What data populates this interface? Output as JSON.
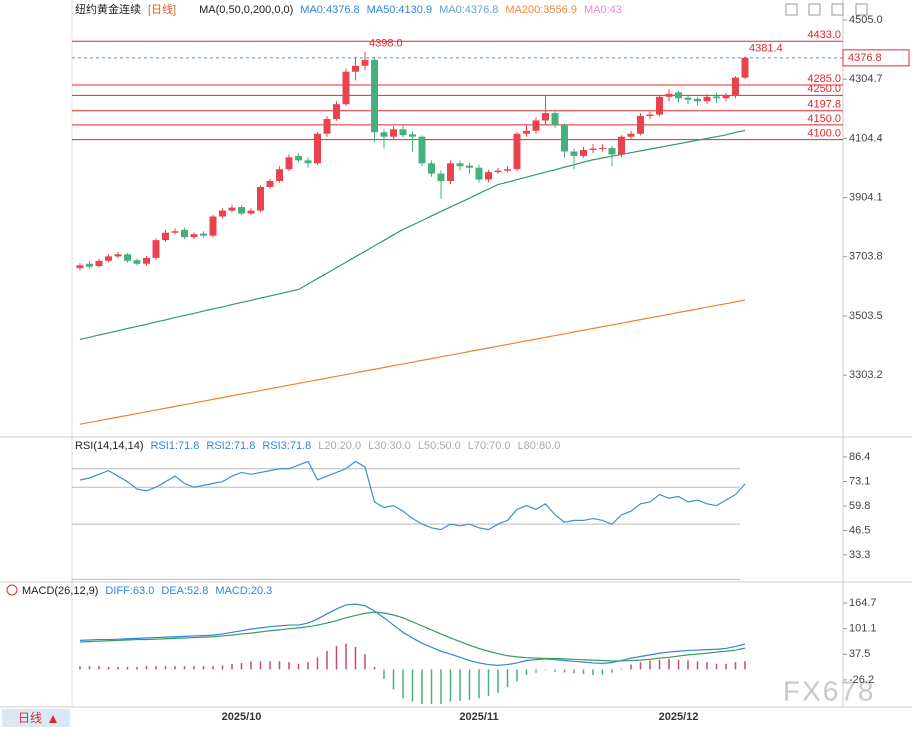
{
  "chart_data": [
    {
      "type": "candlestick",
      "title": "纽约黄金连续",
      "period": "[日线]",
      "indicator": "MA(0,50,0,200,0,0)",
      "legend": [
        {
          "label": "MA0:4376.8",
          "color": "#2f86d8"
        },
        {
          "label": "MA50:4130.9",
          "color": "#2f86d8"
        },
        {
          "label": "MA0:4376.8",
          "color": "#6a9fd0"
        },
        {
          "label": "MA200:3556.9",
          "color": "#f08a3c"
        },
        {
          "label": "MA0:43",
          "color": "#e58bd0"
        }
      ],
      "open": [
        3665,
        3680,
        3672,
        3690,
        3705,
        3712,
        3692,
        3680,
        3700,
        3760,
        3785,
        3795,
        3770,
        3782,
        3775,
        3840,
        3860,
        3872,
        3850,
        3860,
        3940,
        3960,
        4000,
        4045,
        4030,
        4020,
        4120,
        4170,
        4220,
        4330,
        4350,
        4370,
        4125,
        4110,
        4135,
        4118,
        4110,
        4020,
        3985,
        3960,
        4020,
        4012,
        4005,
        3965,
        3990,
        3995,
        4000,
        4120,
        4130,
        4165,
        4190,
        4150,
        4060,
        4045,
        4065,
        4070,
        4072,
        4050,
        4110,
        4120,
        4180,
        4185,
        4245,
        4260,
        4242,
        4238,
        4230,
        4246,
        4240,
        4250,
        4310
      ],
      "high": [
        3682,
        3688,
        3696,
        3712,
        3720,
        3716,
        3698,
        3706,
        3766,
        3795,
        3800,
        3802,
        3786,
        3790,
        3846,
        3868,
        3880,
        3878,
        3868,
        3946,
        3968,
        4010,
        4050,
        4055,
        4040,
        4126,
        4180,
        4230,
        4340,
        4380,
        4398,
        4380,
        4135,
        4145,
        4150,
        4128,
        4115,
        4030,
        3995,
        4030,
        4030,
        4020,
        4015,
        3998,
        4005,
        4010,
        4125,
        4150,
        4175,
        4250,
        4200,
        4155,
        4070,
        4075,
        4085,
        4085,
        4080,
        4115,
        4130,
        4190,
        4195,
        4250,
        4270,
        4265,
        4250,
        4245,
        4255,
        4260,
        4258,
        4315,
        4381.4
      ],
      "low": [
        3658,
        3664,
        3667,
        3685,
        3699,
        3684,
        3674,
        3674,
        3694,
        3754,
        3779,
        3764,
        3764,
        3769,
        3769,
        3834,
        3854,
        3844,
        3844,
        3854,
        3934,
        3954,
        3994,
        4024,
        4005,
        4014,
        4110,
        4164,
        4214,
        4300,
        4335,
        4090,
        4070,
        4100,
        4108,
        4060,
        4010,
        3975,
        3900,
        3950,
        3995,
        3985,
        3955,
        3955,
        3984,
        3989,
        3994,
        4110,
        4120,
        4150,
        4140,
        4040,
        4000,
        4039,
        4055,
        4060,
        4010,
        4040,
        4100,
        4114,
        4170,
        4179,
        4230,
        4225,
        4220,
        4215,
        4220,
        4225,
        4230,
        4240,
        4305
      ],
      "close": [
        3675,
        3670,
        3690,
        3705,
        3712,
        3690,
        3680,
        3700,
        3760,
        3785,
        3790,
        3770,
        3780,
        3775,
        3840,
        3860,
        3870,
        3850,
        3860,
        3940,
        3960,
        4000,
        4040,
        4030,
        4020,
        4120,
        4170,
        4220,
        4330,
        4350,
        4370,
        4125,
        4110,
        4135,
        4115,
        4110,
        4020,
        3985,
        3960,
        4020,
        4010,
        4005,
        3965,
        3990,
        3995,
        4000,
        4120,
        4130,
        4165,
        4190,
        4150,
        4060,
        4045,
        4065,
        4070,
        4072,
        4050,
        4110,
        4120,
        4180,
        4185,
        4245,
        4255,
        4240,
        4235,
        4230,
        4245,
        4240,
        4250,
        4310,
        4376.8
      ],
      "up_color": "#e8434f",
      "down_color": "#45b07c",
      "series": [
        {
          "color": "#2f9a6e",
          "values": [
            3424,
            3431,
            3439,
            3446,
            3453,
            3461,
            3468,
            3475,
            3483,
            3490,
            3498,
            3505,
            3512,
            3520,
            3527,
            3534,
            3542,
            3549,
            3556,
            3564,
            3571,
            3578,
            3586,
            3593,
            3611,
            3630,
            3648,
            3667,
            3685,
            3704,
            3722,
            3741,
            3759,
            3778,
            3796,
            3811,
            3826,
            3842,
            3857,
            3872,
            3887,
            3902,
            3918,
            3933,
            3948,
            3956,
            3965,
            3973,
            3982,
            3990,
            3998,
            4007,
            4015,
            4024,
            4032,
            4038,
            4044,
            4050,
            4056,
            4062,
            4068,
            4074,
            4080,
            4086,
            4092,
            4098,
            4104,
            4110,
            4116,
            4125,
            4130.9
          ]
        },
        {
          "color": "#f0822c",
          "values": [
            3137,
            3143,
            3149,
            3155,
            3161,
            3167,
            3173,
            3179,
            3185,
            3191,
            3197,
            3203,
            3209,
            3215,
            3221,
            3227,
            3233,
            3239,
            3245,
            3251,
            3257,
            3263,
            3269,
            3275,
            3281,
            3287,
            3293,
            3299,
            3305,
            3311,
            3317,
            3323,
            3329,
            3335,
            3341,
            3347,
            3353,
            3359,
            3365,
            3371,
            3377,
            3383,
            3389,
            3395,
            3401,
            3407,
            3413,
            3419,
            3425,
            3431,
            3437,
            3443,
            3449,
            3455,
            3461,
            3467,
            3473,
            3479,
            3485,
            3491,
            3497,
            3503,
            3509,
            3515,
            3521,
            3527,
            3533,
            3539,
            3545,
            3551,
            3556.9
          ]
        }
      ],
      "ylim": [
        3100.5,
        4538.8
      ],
      "yticks": [
        {
          "value": 4505,
          "label": "4505.0"
        },
        4304.7,
        4104.4,
        3904.1,
        3703.8,
        3503.5,
        3303.2
      ],
      "levels": [
        {
          "value": 4433,
          "label": "4433.0"
        },
        {
          "value": 4285,
          "label": "4285.0"
        },
        {
          "value": 4250,
          "label": "4250.0"
        },
        4197.8,
        {
          "value": 4150,
          "label": "4150.0"
        },
        {
          "value": 4100,
          "label": "4100.0"
        }
      ],
      "level_color": "#e0282e",
      "last_price": 4376.8,
      "annotations": [
        {
          "value": 4398,
          "label": "4398.0"
        },
        4381.4
      ]
    },
    {
      "type": "line",
      "title": "RSI(14,14,14)",
      "legend": [
        {
          "label": "RSI1:71.8",
          "color": "#2f86d8"
        },
        {
          "label": "RSI2:71.8",
          "color": "#2f86d8"
        },
        {
          "label": "RSI3:71.8",
          "color": "#2f86d8"
        },
        {
          "label": "L20:20.0",
          "color": "#aaaaaa"
        },
        {
          "label": "L30:30.0",
          "color": "#aaaaaa"
        },
        {
          "label": "L50:50.0",
          "color": "#aaaaaa"
        },
        {
          "label": "L70:70.0",
          "color": "#aaaaaa"
        },
        {
          "label": "L80:80.0",
          "color": "#aaaaaa"
        }
      ],
      "series": [
        {
          "color": "#3c8fd6",
          "values": [
            73.9,
            75,
            77,
            79,
            76,
            73,
            69,
            68,
            70,
            73,
            76,
            72,
            70,
            71,
            72,
            73,
            76,
            78,
            77,
            78,
            79,
            80,
            80,
            82,
            84,
            74,
            76,
            78,
            80,
            84,
            81,
            62,
            59,
            60,
            57,
            53,
            50,
            48,
            47,
            50,
            49,
            50,
            48,
            47,
            50,
            52,
            58,
            60,
            58,
            61,
            55,
            51,
            52,
            52,
            53,
            52,
            50,
            55,
            57,
            61,
            62,
            66,
            64,
            65,
            62,
            63,
            61,
            60,
            63,
            66,
            71.8
          ]
        }
      ],
      "ylim": [
        18.6,
        95.6
      ],
      "yticks": [
        86.4,
        73.1,
        59.8,
        46.5,
        33.3
      ],
      "ref_lines": [
        80,
        70,
        50,
        20
      ]
    },
    {
      "type": "macd",
      "title": "MACD(26,12,9)",
      "legend": [
        {
          "label": "DIFF:63.0",
          "color": "#2f86d8"
        },
        {
          "label": "DEA:52.8",
          "color": "#2f86d8"
        },
        {
          "label": "MACD:20.3",
          "color": "#2f86d8"
        }
      ],
      "categories": [
        null,
        null,
        null,
        null,
        null,
        null,
        null,
        null,
        null,
        null,
        null,
        null,
        null,
        null,
        null,
        null,
        null,
        "2025/10",
        null,
        null,
        null,
        null,
        null,
        null,
        null,
        null,
        null,
        null,
        null,
        null,
        null,
        null,
        null,
        null,
        null,
        null,
        null,
        null,
        null,
        null,
        null,
        null,
        "2025/11",
        null,
        null,
        null,
        null,
        null,
        null,
        null,
        null,
        null,
        null,
        null,
        null,
        null,
        null,
        null,
        null,
        null,
        null,
        null,
        null,
        "2025/12",
        null,
        null,
        null,
        null,
        null,
        null,
        null
      ],
      "series": [
        {
          "color": "#2f86d8",
          "values": [
            72,
            73,
            74,
            74,
            75,
            76,
            77,
            78,
            79,
            80,
            81,
            82,
            83,
            84,
            85,
            88,
            92,
            96,
            100,
            103,
            106,
            108,
            110,
            110,
            115,
            125,
            138,
            150,
            160,
            162,
            158,
            145,
            128,
            110,
            92,
            78,
            65,
            55,
            45,
            38,
            30,
            22,
            16,
            12,
            10,
            12,
            16,
            22,
            24,
            26,
            24,
            22,
            20,
            18,
            16,
            15,
            17,
            22,
            28,
            32,
            36,
            40,
            43,
            45,
            47,
            48,
            49,
            50,
            52,
            57,
            63
          ]
        },
        {
          "color": "#3a9a5a",
          "values": [
            68,
            69,
            70,
            71,
            72,
            73,
            74,
            74,
            75,
            76,
            77,
            78,
            79,
            80,
            81,
            83,
            85,
            88,
            90,
            93,
            96,
            98,
            101,
            103,
            106,
            110,
            115,
            121,
            128,
            134,
            139,
            142,
            140,
            135,
            128,
            118,
            108,
            98,
            88,
            78,
            69,
            60,
            52,
            45,
            39,
            34,
            31,
            29,
            28,
            27,
            27,
            26,
            25,
            24,
            23,
            22,
            21,
            21,
            22,
            23,
            25,
            28,
            30,
            33,
            36,
            38,
            40,
            43,
            45,
            48,
            52.8
          ]
        }
      ],
      "bars": {
        "up_color": "#c84a6a",
        "down_color": "#4caf7f",
        "values": [
          8,
          8,
          8,
          6,
          6,
          6,
          6,
          8,
          8,
          8,
          8,
          8,
          8,
          8,
          8,
          10,
          14,
          16,
          20,
          20,
          20,
          20,
          18,
          14,
          18,
          30,
          46,
          58,
          64,
          56,
          38,
          6,
          -24,
          -50,
          -72,
          -80,
          -86,
          -86,
          -86,
          -80,
          -78,
          -76,
          -72,
          -66,
          -58,
          -44,
          -30,
          -14,
          -8,
          -2,
          -6,
          -8,
          -10,
          -12,
          -14,
          -14,
          -8,
          2,
          12,
          18,
          22,
          24,
          26,
          24,
          22,
          20,
          18,
          14,
          14,
          18,
          20.3
        ]
      },
      "ylim": [
        -93.4,
        209.5
      ],
      "yticks": [
        164.7,
        101.1,
        37.5,
        -26.2
      ]
    }
  ],
  "ui": {
    "period_button": "日线",
    "watermark": "FX678"
  }
}
